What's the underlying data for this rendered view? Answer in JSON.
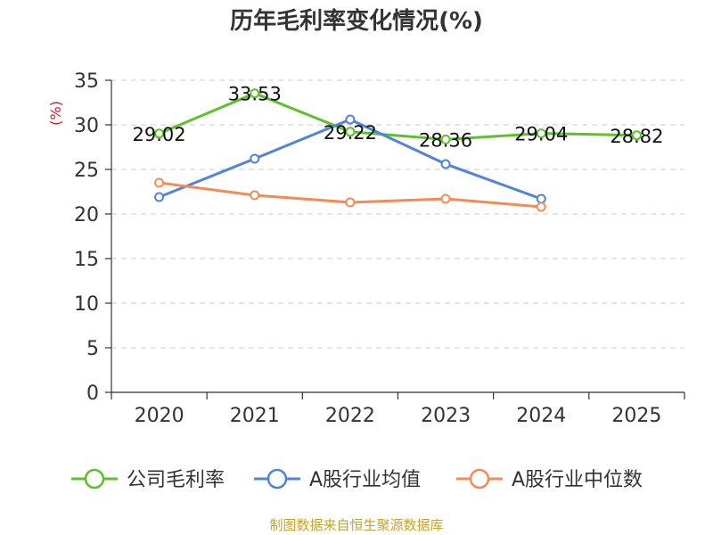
{
  "chart_data": {
    "type": "line",
    "title": "历年毛利率变化情况(%)",
    "ylabel": "(%)",
    "xlabel": "",
    "categories": [
      "2020",
      "2021",
      "2022",
      "2023",
      "2024",
      "2025"
    ],
    "ylim": [
      0,
      35
    ],
    "yticks": [
      0,
      5,
      10,
      15,
      20,
      25,
      30,
      35
    ],
    "grid": true,
    "legend_position": "bottom",
    "series": [
      {
        "name": "公司毛利率",
        "color": "#5ec12a",
        "values": [
          29.02,
          33.53,
          29.22,
          28.36,
          29.04,
          28.82
        ],
        "labels": [
          "29.02",
          "33.53",
          "29.22",
          "28.36",
          "29.04",
          "28.82"
        ],
        "show_labels": true
      },
      {
        "name": "A股行业均值",
        "color": "#4f84d8",
        "values": [
          21.9,
          26.2,
          30.6,
          25.6,
          21.7,
          null
        ],
        "show_labels": false
      },
      {
        "name": "A股行业中位数",
        "color": "#f58a55",
        "values": [
          23.5,
          22.1,
          21.3,
          21.7,
          20.8,
          null
        ],
        "show_labels": false
      }
    ]
  },
  "source": "制图数据来自恒生聚源数据库",
  "colors": {
    "axis": "#333333",
    "grid": "#cccccc",
    "unit": "#d9161c",
    "source": "#c9a227",
    "title": "#333333"
  }
}
